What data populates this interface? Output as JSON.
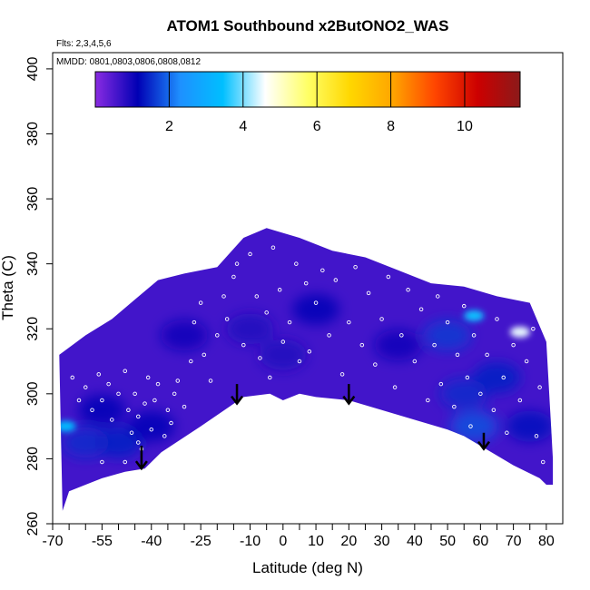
{
  "chart_data": {
    "type": "heatmap",
    "title": "ATOM1 Southbound x2ButONO2_WAS",
    "flights_note": "Flts: 2,3,4,5,6",
    "dates_note": "MMDD: 0801,0803,0806,0808,0812",
    "xlabel": "Latitude (deg N)",
    "ylabel": "Theta (C)",
    "xlim": [
      -70,
      85
    ],
    "ylim": [
      260,
      405
    ],
    "x_tick_labels": [
      -70,
      -55,
      -40,
      -25,
      -10,
      0,
      10,
      20,
      30,
      40,
      50,
      60,
      70,
      80
    ],
    "x_minor_ticks": [
      -65,
      -60,
      -50,
      -45,
      -35,
      -30,
      -20,
      -15,
      -5,
      5,
      15,
      25,
      35,
      45,
      55,
      65,
      75
    ],
    "y_tick_labels": [
      260,
      280,
      300,
      320,
      340,
      360,
      380,
      400
    ],
    "colorbar": {
      "range": [
        0,
        11.5
      ],
      "tick_labels": [
        2,
        4,
        6,
        8,
        10
      ],
      "colors": [
        "#8a2be2",
        "#0000b4",
        "#1e90ff",
        "#00bfff",
        "#ffffff",
        "#ffff66",
        "#ffd700",
        "#ffa500",
        "#ff4500",
        "#cc0000",
        "#8b1a1a"
      ]
    },
    "field": {
      "background_value": 0.6,
      "top_boundary": [
        [
          -68,
          312
        ],
        [
          -60,
          318
        ],
        [
          -52,
          323
        ],
        [
          -45,
          329
        ],
        [
          -38,
          335
        ],
        [
          -30,
          337
        ],
        [
          -20,
          339
        ],
        [
          -12,
          348
        ],
        [
          -5,
          351
        ],
        [
          5,
          348
        ],
        [
          15,
          344
        ],
        [
          25,
          342
        ],
        [
          35,
          338
        ],
        [
          45,
          334
        ],
        [
          55,
          333
        ],
        [
          65,
          330
        ],
        [
          75,
          328
        ],
        [
          80,
          316
        ],
        [
          82,
          280
        ],
        [
          82,
          272
        ]
      ],
      "bottom_boundary": [
        [
          -67,
          264
        ],
        [
          -65,
          270
        ],
        [
          -60,
          272
        ],
        [
          -55,
          274
        ],
        [
          -48,
          276
        ],
        [
          -42,
          277
        ],
        [
          -37,
          282
        ],
        [
          -25,
          290
        ],
        [
          -12,
          299
        ],
        [
          -4,
          300
        ],
        [
          0,
          298
        ],
        [
          5,
          300
        ],
        [
          10,
          299
        ],
        [
          20,
          298
        ],
        [
          30,
          295
        ],
        [
          40,
          292
        ],
        [
          50,
          289
        ],
        [
          55,
          287
        ],
        [
          60,
          284
        ],
        [
          70,
          278
        ],
        [
          78,
          274
        ],
        [
          80,
          272
        ]
      ],
      "enhanced_regions": [
        {
          "lat": -60,
          "theta": 285,
          "value": 1.5
        },
        {
          "lat": -50,
          "theta": 285,
          "value": 1.4
        },
        {
          "lat": -55,
          "theta": 295,
          "value": 1.1
        },
        {
          "lat": -40,
          "theta": 290,
          "value": 1.2
        },
        {
          "lat": -30,
          "theta": 318,
          "value": 1.0
        },
        {
          "lat": -10,
          "theta": 320,
          "value": 0.9
        },
        {
          "lat": 0,
          "theta": 312,
          "value": 0.9
        },
        {
          "lat": 10,
          "theta": 326,
          "value": 1.1
        },
        {
          "lat": 35,
          "theta": 315,
          "value": 1.0
        },
        {
          "lat": 50,
          "theta": 318,
          "value": 1.6
        },
        {
          "lat": 55,
          "theta": 300,
          "value": 1.5
        },
        {
          "lat": 58,
          "theta": 290,
          "value": 1.8
        },
        {
          "lat": 65,
          "theta": 305,
          "value": 1.4
        },
        {
          "lat": 75,
          "theta": 290,
          "value": 1.3
        }
      ],
      "hotspots": [
        {
          "lat": -66,
          "theta": 290,
          "value": 3.4
        },
        {
          "lat": 58,
          "theta": 324,
          "value": 3.5
        },
        {
          "lat": 72,
          "theta": 319,
          "value": 4.5
        }
      ]
    },
    "sample_points": [
      [
        -64,
        305
      ],
      [
        -62,
        298
      ],
      [
        -60,
        302
      ],
      [
        -58,
        295
      ],
      [
        -56,
        306
      ],
      [
        -55,
        298
      ],
      [
        -53,
        303
      ],
      [
        -52,
        292
      ],
      [
        -50,
        300
      ],
      [
        -48,
        307
      ],
      [
        -47,
        295
      ],
      [
        -46,
        288
      ],
      [
        -45,
        300
      ],
      [
        -44,
        293
      ],
      [
        -43,
        283
      ],
      [
        -42,
        297
      ],
      [
        -41,
        305
      ],
      [
        -40,
        289
      ],
      [
        -39,
        298
      ],
      [
        -38,
        303
      ],
      [
        -36,
        287
      ],
      [
        -35,
        295
      ],
      [
        -34,
        291
      ],
      [
        -33,
        300
      ],
      [
        -32,
        304
      ],
      [
        -30,
        296
      ],
      [
        -28,
        310
      ],
      [
        -27,
        322
      ],
      [
        -25,
        328
      ],
      [
        -24,
        312
      ],
      [
        -22,
        304
      ],
      [
        -20,
        318
      ],
      [
        -18,
        330
      ],
      [
        -17,
        323
      ],
      [
        -15,
        336
      ],
      [
        -14,
        340
      ],
      [
        -12,
        315
      ],
      [
        -10,
        343
      ],
      [
        -8,
        330
      ],
      [
        -7,
        311
      ],
      [
        -5,
        325
      ],
      [
        -4,
        305
      ],
      [
        -3,
        345
      ],
      [
        -1,
        332
      ],
      [
        0,
        316
      ],
      [
        2,
        322
      ],
      [
        4,
        340
      ],
      [
        5,
        310
      ],
      [
        7,
        334
      ],
      [
        8,
        313
      ],
      [
        10,
        328
      ],
      [
        12,
        338
      ],
      [
        14,
        318
      ],
      [
        16,
        335
      ],
      [
        18,
        306
      ],
      [
        20,
        322
      ],
      [
        22,
        339
      ],
      [
        24,
        315
      ],
      [
        26,
        331
      ],
      [
        28,
        309
      ],
      [
        30,
        323
      ],
      [
        32,
        336
      ],
      [
        34,
        302
      ],
      [
        36,
        318
      ],
      [
        38,
        332
      ],
      [
        40,
        310
      ],
      [
        42,
        326
      ],
      [
        44,
        298
      ],
      [
        46,
        315
      ],
      [
        47,
        330
      ],
      [
        48,
        303
      ],
      [
        50,
        322
      ],
      [
        52,
        296
      ],
      [
        53,
        312
      ],
      [
        55,
        327
      ],
      [
        56,
        305
      ],
      [
        57,
        290
      ],
      [
        58,
        318
      ],
      [
        60,
        300
      ],
      [
        61,
        283
      ],
      [
        62,
        312
      ],
      [
        64,
        295
      ],
      [
        65,
        323
      ],
      [
        67,
        305
      ],
      [
        68,
        288
      ],
      [
        70,
        315
      ],
      [
        72,
        298
      ],
      [
        74,
        310
      ],
      [
        76,
        320
      ],
      [
        77,
        287
      ],
      [
        78,
        302
      ],
      [
        79,
        279
      ],
      [
        -48,
        279
      ],
      [
        -55,
        279
      ],
      [
        -44,
        285
      ],
      [
        -36,
        281
      ]
    ],
    "arrows": [
      {
        "lat": -43,
        "theta_top": 284,
        "theta_tip": 277
      },
      {
        "lat": -14,
        "theta_top": 303,
        "theta_tip": 297
      },
      {
        "lat": 20,
        "theta_top": 303,
        "theta_tip": 297
      },
      {
        "lat": 61,
        "theta_top": 288,
        "theta_tip": 283
      }
    ]
  }
}
